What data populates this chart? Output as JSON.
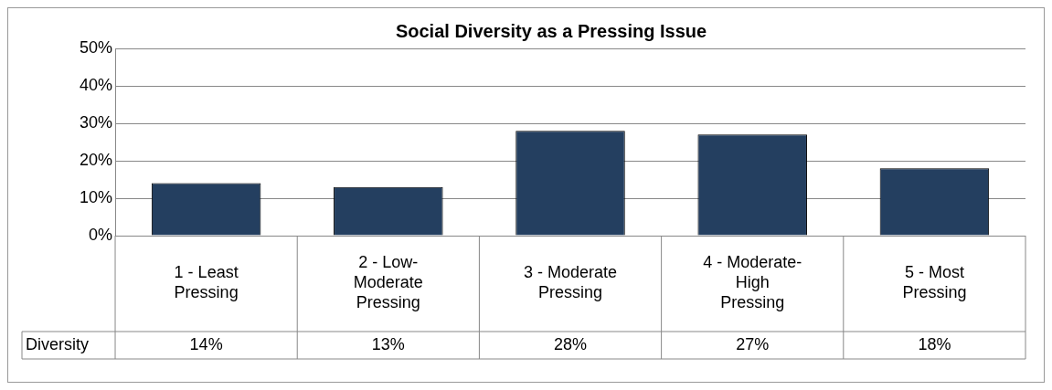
{
  "chart_data": {
    "type": "bar",
    "title": "Social Diversity as a Pressing Issue",
    "categories": [
      "1 - Least Pressing",
      "2 - Low-Moderate Pressing",
      "3 - Moderate Pressing",
      "4 - Moderate-High Pressing",
      "5 - Most Pressing"
    ],
    "series": [
      {
        "name": "Diversity",
        "color": "#243f60",
        "values": [
          14,
          13,
          28,
          27,
          18
        ],
        "value_labels": [
          "14%",
          "13%",
          "28%",
          "27%",
          "18%"
        ]
      }
    ],
    "ylim": [
      0,
      50
    ],
    "yticks": [
      {
        "value": 0,
        "label": "0%"
      },
      {
        "value": 10,
        "label": "10%"
      },
      {
        "value": 20,
        "label": "20%"
      },
      {
        "value": 30,
        "label": "30%"
      },
      {
        "value": 40,
        "label": "40%"
      },
      {
        "value": 50,
        "label": "50%"
      }
    ],
    "grid": "y",
    "legend": false
  }
}
